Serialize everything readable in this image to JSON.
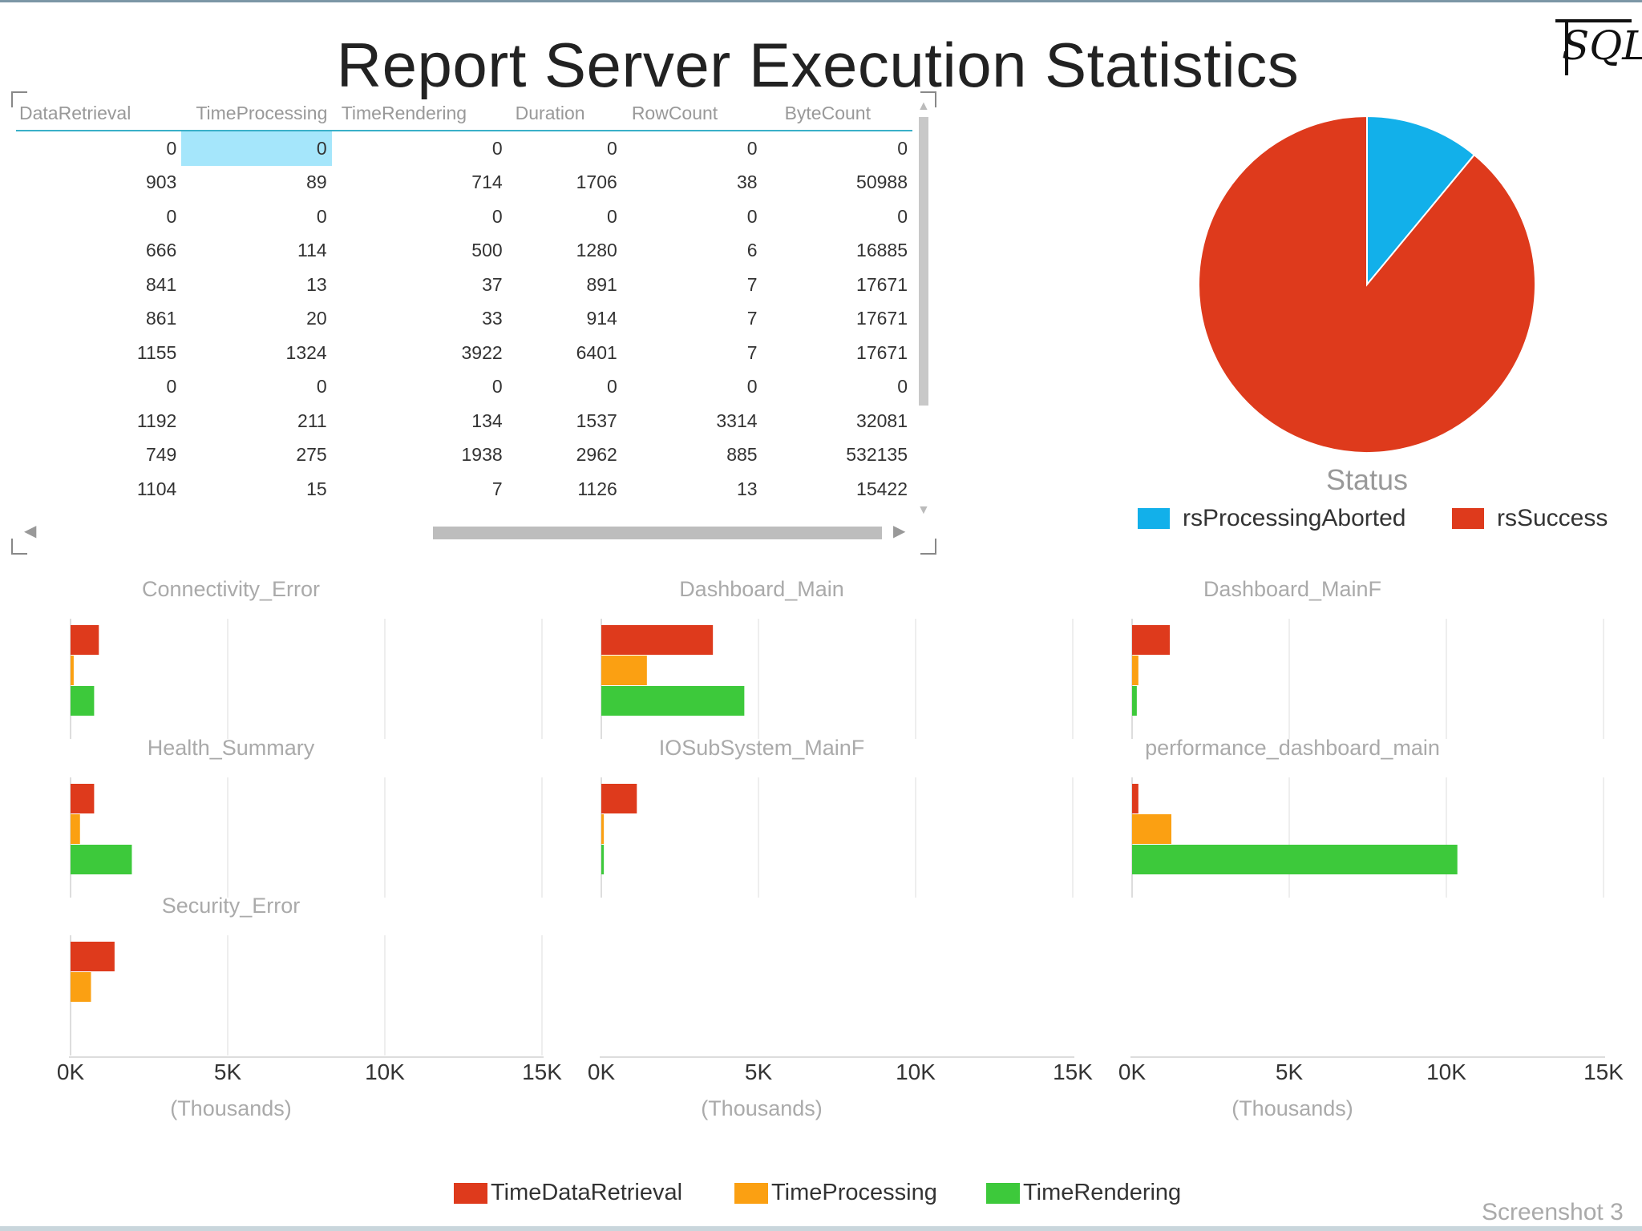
{
  "title": "Report Server Execution Statistics",
  "logo_text": "SQL",
  "colors": {
    "data_retrieval": "#de3a1c",
    "processing": "#fba012",
    "rendering": "#3dc93b",
    "aborted": "#12b0ea",
    "success": "#de3a1c"
  },
  "table": {
    "columns": [
      "DataRetrieval",
      "TimeProcessing",
      "TimeRendering",
      "Duration",
      "RowCount",
      "ByteCount"
    ],
    "rows": [
      [
        "0",
        "0",
        "0",
        "0",
        "0",
        "0"
      ],
      [
        "903",
        "89",
        "714",
        "1706",
        "38",
        "50988"
      ],
      [
        "0",
        "0",
        "0",
        "0",
        "0",
        "0"
      ],
      [
        "666",
        "114",
        "500",
        "1280",
        "6",
        "16885"
      ],
      [
        "841",
        "13",
        "37",
        "891",
        "7",
        "17671"
      ],
      [
        "861",
        "20",
        "33",
        "914",
        "7",
        "17671"
      ],
      [
        "1155",
        "1324",
        "3922",
        "6401",
        "7",
        "17671"
      ],
      [
        "0",
        "0",
        "0",
        "0",
        "0",
        "0"
      ],
      [
        "1192",
        "211",
        "134",
        "1537",
        "3314",
        "32081"
      ],
      [
        "749",
        "275",
        "1938",
        "2962",
        "885",
        "532135"
      ],
      [
        "1104",
        "15",
        "7",
        "1126",
        "13",
        "15422"
      ]
    ]
  },
  "pie_chart": {
    "title": "Status",
    "legend": [
      "rsProcessingAborted",
      "rsSuccess"
    ]
  },
  "x_axis": {
    "ticks": [
      "0K",
      "5K",
      "10K",
      "15K"
    ],
    "unit": "(Thousands)"
  },
  "bar_legend": [
    "TimeDataRetrieval",
    "TimeProcessing",
    "TimeRendering"
  ],
  "screenshot_label": "Screenshot 3",
  "chart_data": [
    {
      "type": "pie",
      "title": "Status",
      "slices": [
        {
          "name": "rsProcessingAborted",
          "value": 11
        },
        {
          "name": "rsSuccess",
          "value": 89
        }
      ]
    },
    {
      "type": "bar",
      "orientation": "horizontal",
      "xlim": [
        0,
        15000
      ],
      "series_names": [
        "TimeDataRetrieval",
        "TimeProcessing",
        "TimeRendering"
      ],
      "panels": [
        {
          "name": "Connectivity_Error",
          "values": [
            900,
            100,
            750
          ]
        },
        {
          "name": "Dashboard_Main",
          "values": [
            3550,
            1450,
            4550
          ]
        },
        {
          "name": "Dashboard_MainF",
          "values": [
            1200,
            200,
            150
          ]
        },
        {
          "name": "Health_Summary",
          "values": [
            750,
            300,
            1950
          ]
        },
        {
          "name": "IOSubSystem_MainF",
          "values": [
            1130,
            80,
            80
          ]
        },
        {
          "name": "performance_dashboard_main",
          "values": [
            200,
            1250,
            10350
          ]
        },
        {
          "name": "Security_Error",
          "values": [
            1400,
            650,
            0
          ]
        }
      ]
    }
  ]
}
